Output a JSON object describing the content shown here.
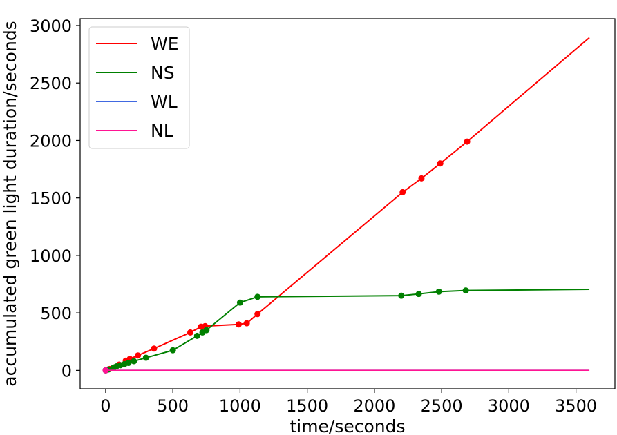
{
  "chart_data": {
    "type": "line",
    "xlabel": "time/seconds",
    "ylabel": "accumulated green light duration/seconds",
    "xlim": [
      -190,
      3790
    ],
    "ylim": [
      -160,
      3060
    ],
    "xticks": [
      "0",
      "500",
      "1000",
      "1500",
      "2000",
      "2500",
      "3000",
      "3500"
    ],
    "yticks": [
      "0",
      "500",
      "1000",
      "1500",
      "2000",
      "2500",
      "3000"
    ],
    "legend_position": "top-left",
    "grid": false,
    "series": [
      {
        "name": "WE",
        "color": "#ff0000",
        "points": [
          [
            0,
            0
          ],
          [
            10,
            5
          ],
          [
            30,
            12
          ],
          [
            60,
            25
          ],
          [
            100,
            50
          ],
          [
            150,
            85
          ],
          [
            180,
            100
          ],
          [
            240,
            130
          ],
          [
            360,
            190
          ],
          [
            630,
            330
          ],
          [
            710,
            380
          ],
          [
            740,
            385
          ],
          [
            990,
            400
          ],
          [
            1050,
            410
          ],
          [
            1130,
            490
          ],
          [
            2210,
            1550
          ],
          [
            2350,
            1670
          ],
          [
            2490,
            1800
          ],
          [
            2690,
            1990
          ],
          [
            3600,
            2895
          ]
        ],
        "markers": [
          [
            0,
            0
          ],
          [
            10,
            5
          ],
          [
            30,
            12
          ],
          [
            60,
            25
          ],
          [
            100,
            50
          ],
          [
            150,
            85
          ],
          [
            180,
            100
          ],
          [
            240,
            130
          ],
          [
            360,
            190
          ],
          [
            630,
            330
          ],
          [
            710,
            380
          ],
          [
            740,
            385
          ],
          [
            990,
            400
          ],
          [
            1050,
            410
          ],
          [
            1130,
            490
          ],
          [
            2210,
            1550
          ],
          [
            2350,
            1670
          ],
          [
            2490,
            1800
          ],
          [
            2690,
            1990
          ]
        ]
      },
      {
        "name": "NS",
        "color": "#008000",
        "points": [
          [
            0,
            0
          ],
          [
            20,
            8
          ],
          [
            60,
            25
          ],
          [
            80,
            35
          ],
          [
            110,
            45
          ],
          [
            140,
            55
          ],
          [
            170,
            65
          ],
          [
            210,
            80
          ],
          [
            300,
            110
          ],
          [
            500,
            175
          ],
          [
            680,
            300
          ],
          [
            720,
            330
          ],
          [
            750,
            350
          ],
          [
            1000,
            590
          ],
          [
            1130,
            640
          ],
          [
            2200,
            650
          ],
          [
            2330,
            665
          ],
          [
            2480,
            685
          ],
          [
            2680,
            695
          ],
          [
            3600,
            705
          ]
        ],
        "markers": [
          [
            0,
            0
          ],
          [
            20,
            8
          ],
          [
            60,
            25
          ],
          [
            80,
            35
          ],
          [
            110,
            45
          ],
          [
            140,
            55
          ],
          [
            170,
            65
          ],
          [
            210,
            80
          ],
          [
            300,
            110
          ],
          [
            500,
            175
          ],
          [
            680,
            300
          ],
          [
            720,
            330
          ],
          [
            750,
            350
          ],
          [
            1000,
            590
          ],
          [
            1130,
            640
          ],
          [
            2200,
            650
          ],
          [
            2330,
            665
          ],
          [
            2480,
            685
          ],
          [
            2680,
            695
          ]
        ]
      },
      {
        "name": "WL",
        "color": "#4169e1",
        "points": [
          [
            0,
            0
          ],
          [
            3600,
            0
          ]
        ],
        "markers": [
          [
            0,
            0
          ]
        ]
      },
      {
        "name": "NL",
        "color": "#ff1493",
        "points": [
          [
            0,
            0
          ],
          [
            3600,
            0
          ]
        ],
        "markers": [
          [
            0,
            0
          ]
        ]
      }
    ]
  }
}
